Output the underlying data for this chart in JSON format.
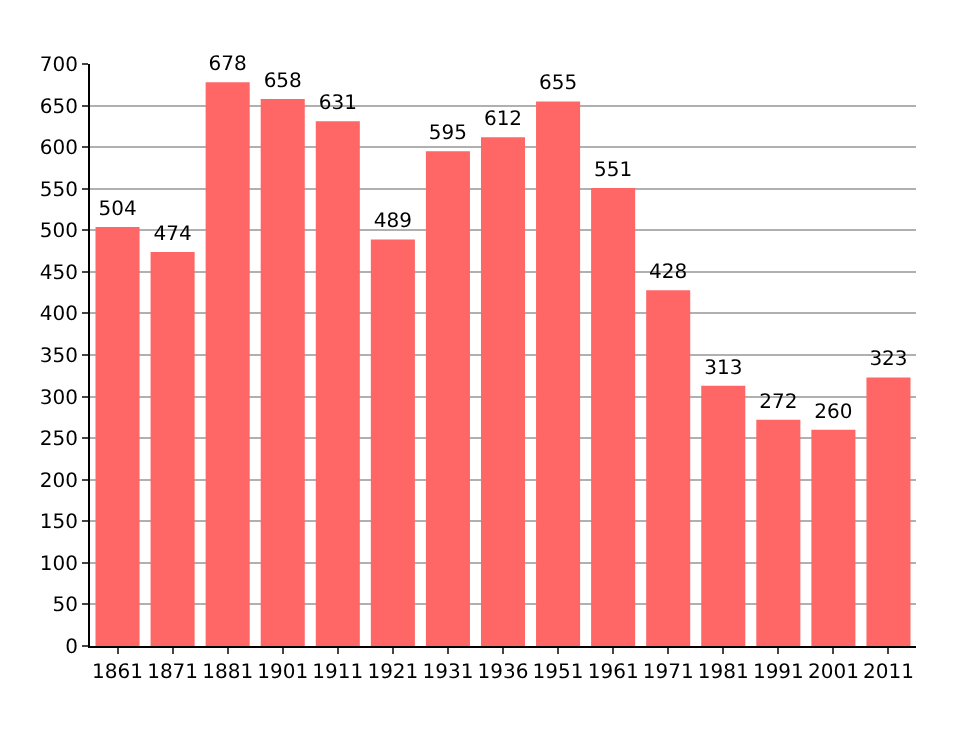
{
  "chart_data": {
    "type": "bar",
    "categories": [
      "1861",
      "1871",
      "1881",
      "1901",
      "1911",
      "1921",
      "1931",
      "1936",
      "1951",
      "1961",
      "1971",
      "1981",
      "1991",
      "2001",
      "2011"
    ],
    "values": [
      504,
      474,
      678,
      658,
      631,
      489,
      595,
      612,
      655,
      551,
      428,
      313,
      272,
      260,
      323
    ],
    "color": "#ff6666",
    "ylim": [
      0,
      700
    ],
    "yticks": [
      0,
      50,
      100,
      150,
      200,
      250,
      300,
      350,
      400,
      450,
      500,
      550,
      600,
      650,
      700
    ],
    "grid": "y",
    "data_labels": true
  }
}
